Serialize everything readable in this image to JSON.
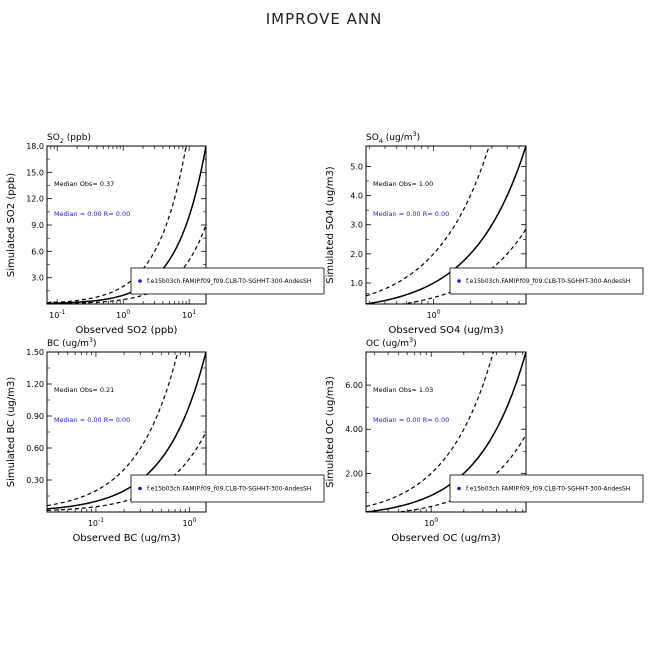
{
  "figure": {
    "title": "IMPROVE ANN"
  },
  "chart_data": [
    {
      "type": "scatter",
      "title": "SO2 (ppb)",
      "title_parts": [
        "SO",
        "2",
        " (ppb)"
      ],
      "xlabel": "Observed SO2 (ppb)",
      "ylabel": "Simulated SO2 (ppb)",
      "xscale": "log",
      "xlim": [
        0.07,
        18
      ],
      "ylim": [
        0,
        18
      ],
      "xticks": [
        {
          "v": 0.1,
          "b": "10",
          "e": "-1"
        },
        {
          "v": 1,
          "b": "10",
          "e": "0"
        },
        {
          "v": 10,
          "b": "10",
          "e": "1"
        }
      ],
      "yticks": [
        3,
        6,
        9,
        12,
        15,
        18
      ],
      "ytick_labels": [
        "3.0",
        "6.0",
        "9.0",
        "12.0",
        "15.0",
        "18.0"
      ],
      "median_obs": "Median Obs= 0.37",
      "median_sim": "Median = 0.00  R= 0.00",
      "legend": "f.e15b03ch.FAMIP.f09_f09.CLB-T0-SGHHT-300-AndesSH",
      "legend_position": "lower-right",
      "lines": [
        {
          "name": "1:1",
          "slope": 1
        },
        {
          "name": "2:1",
          "slope": 2
        },
        {
          "name": "1:2",
          "slope": 0.5
        }
      ],
      "series": []
    },
    {
      "type": "scatter",
      "title": "SO4 (ug/m3)",
      "title_parts": [
        "SO",
        "4",
        " (ug/m",
        "3",
        ")"
      ],
      "xlabel": "Observed SO4 (ug/m3)",
      "ylabel": "Simulated SO4 (ug/m3)",
      "xscale": "log",
      "xlim": [
        0.28,
        5.7
      ],
      "ylim": [
        0.28,
        5.7
      ],
      "xticks": [
        {
          "v": 1,
          "b": "10",
          "e": "0"
        }
      ],
      "yticks": [
        1,
        2,
        3,
        4,
        5
      ],
      "ytick_labels": [
        "1.0",
        "2.0",
        "3.0",
        "4.0",
        "5.0"
      ],
      "median_obs": "Median Obs= 1.00",
      "median_sim": "Median = 0.00  R= 0.00",
      "legend": "f.e15b03ch.FAMIP.f09_f09.CLB-T0-SGHHT-300-AndesSH",
      "legend_position": "lower-right",
      "lines": [
        {
          "name": "1:1",
          "slope": 1
        },
        {
          "name": "2:1",
          "slope": 2
        },
        {
          "name": "1:2",
          "slope": 0.5
        }
      ],
      "series": []
    },
    {
      "type": "scatter",
      "title": "BC (ug/m3)",
      "title_parts": [
        "BC (ug/m",
        "3",
        ")"
      ],
      "xlabel": "Observed BC (ug/m3)",
      "ylabel": "Simulated BC (ug/m3)",
      "xscale": "log",
      "xlim": [
        0.03,
        1.5
      ],
      "ylim": [
        0,
        1.5
      ],
      "xticks": [
        {
          "v": 0.1,
          "b": "10",
          "e": "-1"
        },
        {
          "v": 1,
          "b": "10",
          "e": "0"
        }
      ],
      "yticks": [
        0.3,
        0.6,
        0.9,
        1.2,
        1.5
      ],
      "ytick_labels": [
        "0.30",
        "0.60",
        "0.90",
        "1.20",
        "1.50"
      ],
      "median_obs": "Median Obs= 0.21",
      "median_sim": "Median = 0.00  R= 0.00",
      "legend": "f.e15b03ch.FAMIP.f09_f09.CLB-T0-SGHHT-300-AndesSH",
      "legend_position": "lower-right",
      "lines": [
        {
          "name": "1:1",
          "slope": 1
        },
        {
          "name": "2:1",
          "slope": 2
        },
        {
          "name": "1:2",
          "slope": 0.5
        }
      ],
      "series": []
    },
    {
      "type": "scatter",
      "title": "OC (ug/m3)",
      "title_parts": [
        "OC (ug/m",
        "3",
        ")"
      ],
      "xlabel": "Observed OC (ug/m3)",
      "ylabel": "Simulated OC (ug/m3)",
      "xscale": "log",
      "xlim": [
        0.25,
        7.5
      ],
      "ylim": [
        0.25,
        7.5
      ],
      "xticks": [
        {
          "v": 1,
          "b": "10",
          "e": "0"
        }
      ],
      "yticks": [
        2,
        4,
        6
      ],
      "ytick_labels": [
        "2.00",
        "4.00",
        "6.00"
      ],
      "median_obs": "Median Obs= 1.03",
      "median_sim": "Median = 0.00  R= 0.00",
      "legend": "f.e15b03ch.FAMIP.f09_f09.CLB-T0-SGHHT-300-AndesSH",
      "legend_position": "lower-right",
      "lines": [
        {
          "name": "1:1",
          "slope": 1
        },
        {
          "name": "2:1",
          "slope": 2
        },
        {
          "name": "1:2",
          "slope": 0.5
        }
      ],
      "series": []
    }
  ],
  "colors": {
    "line": "#000000",
    "median_text": "#1a1ad8",
    "legend_marker": "#1a1ad8"
  }
}
